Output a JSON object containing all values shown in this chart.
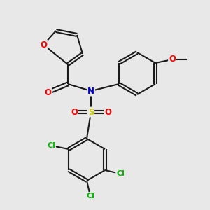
{
  "background_color": "#e8e8e8",
  "bond_color": "#1a1a1a",
  "atom_colors": {
    "O": "#ff0000",
    "N": "#0000cc",
    "S": "#cccc00",
    "Cl": "#00bb00",
    "C": "#1a1a1a"
  },
  "bond_lw": 1.5,
  "font_size_atom": 8.5
}
